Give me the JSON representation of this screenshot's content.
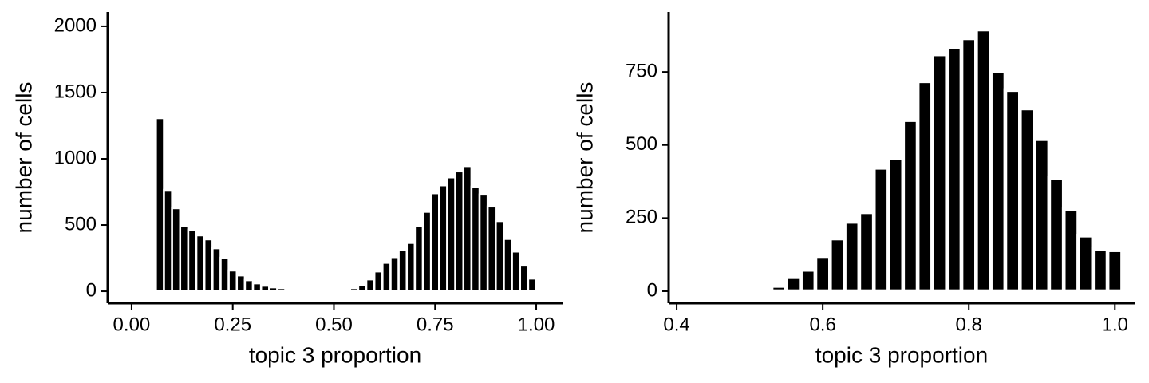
{
  "chart_data": [
    {
      "type": "histogram",
      "xlabel": "topic 3 proportion",
      "ylabel": "number of cells",
      "color": "#000000",
      "bins": [
        0.06,
        0.08,
        0.1,
        0.12,
        0.14,
        0.16,
        0.18,
        0.2,
        0.22,
        0.24,
        0.26,
        0.28,
        0.3,
        0.32,
        0.34,
        0.36,
        0.38,
        0.4,
        0.42,
        0.44,
        0.46,
        0.48,
        0.5,
        0.52,
        0.54,
        0.56,
        0.58,
        0.6,
        0.62,
        0.64,
        0.66,
        0.68,
        0.7,
        0.72,
        0.74,
        0.76,
        0.78,
        0.8,
        0.82,
        0.84,
        0.86,
        0.88,
        0.9,
        0.92,
        0.94,
        0.96,
        0.98,
        1.0
      ],
      "counts": [
        1307,
        765,
        627,
        494,
        464,
        422,
        392,
        325,
        253,
        157,
        120,
        84,
        60,
        42,
        30,
        24,
        18,
        12,
        5,
        3,
        2,
        2,
        3,
        8,
        24,
        48,
        90,
        150,
        215,
        258,
        310,
        365,
        490,
        600,
        740,
        800,
        860,
        905,
        945,
        790,
        730,
        640,
        530,
        395,
        300,
        200,
        96
      ],
      "xlim": [
        -0.059,
        1.065
      ],
      "ylim": [
        -90,
        2108
      ],
      "xticks": [
        {
          "value": 0,
          "label": "0.00"
        },
        {
          "value": 0.25,
          "label": "0.25"
        },
        {
          "value": 0.5,
          "label": "0.50"
        },
        {
          "value": 0.75,
          "label": "0.75"
        },
        {
          "value": 1,
          "label": "1.00"
        }
      ],
      "yticks": [
        0,
        500,
        1000,
        1500,
        2000
      ]
    },
    {
      "type": "histogram",
      "xlabel": "topic 3 proportion",
      "ylabel": "number of cells",
      "color": "#000000",
      "bins": [
        0.51,
        0.53,
        0.55,
        0.57,
        0.59,
        0.61,
        0.63,
        0.65,
        0.67,
        0.69,
        0.71,
        0.73,
        0.75,
        0.77,
        0.79,
        0.81,
        0.83,
        0.85,
        0.87,
        0.89,
        0.91,
        0.93,
        0.95,
        0.97,
        0.99,
        1.01
      ],
      "counts": [
        8,
        18,
        48,
        73,
        120,
        180,
        237,
        270,
        422,
        455,
        585,
        718,
        810,
        835,
        865,
        895,
        752,
        688,
        625,
        520,
        388,
        280,
        190,
        145,
        140
      ],
      "xlim": [
        0.389,
        1.027
      ],
      "ylim": [
        -41,
        955
      ],
      "xticks": [
        0.4,
        0.6,
        0.8,
        {
          "value": 1,
          "label": "1.0"
        }
      ],
      "yticks": [
        0,
        250,
        500,
        750
      ]
    }
  ]
}
